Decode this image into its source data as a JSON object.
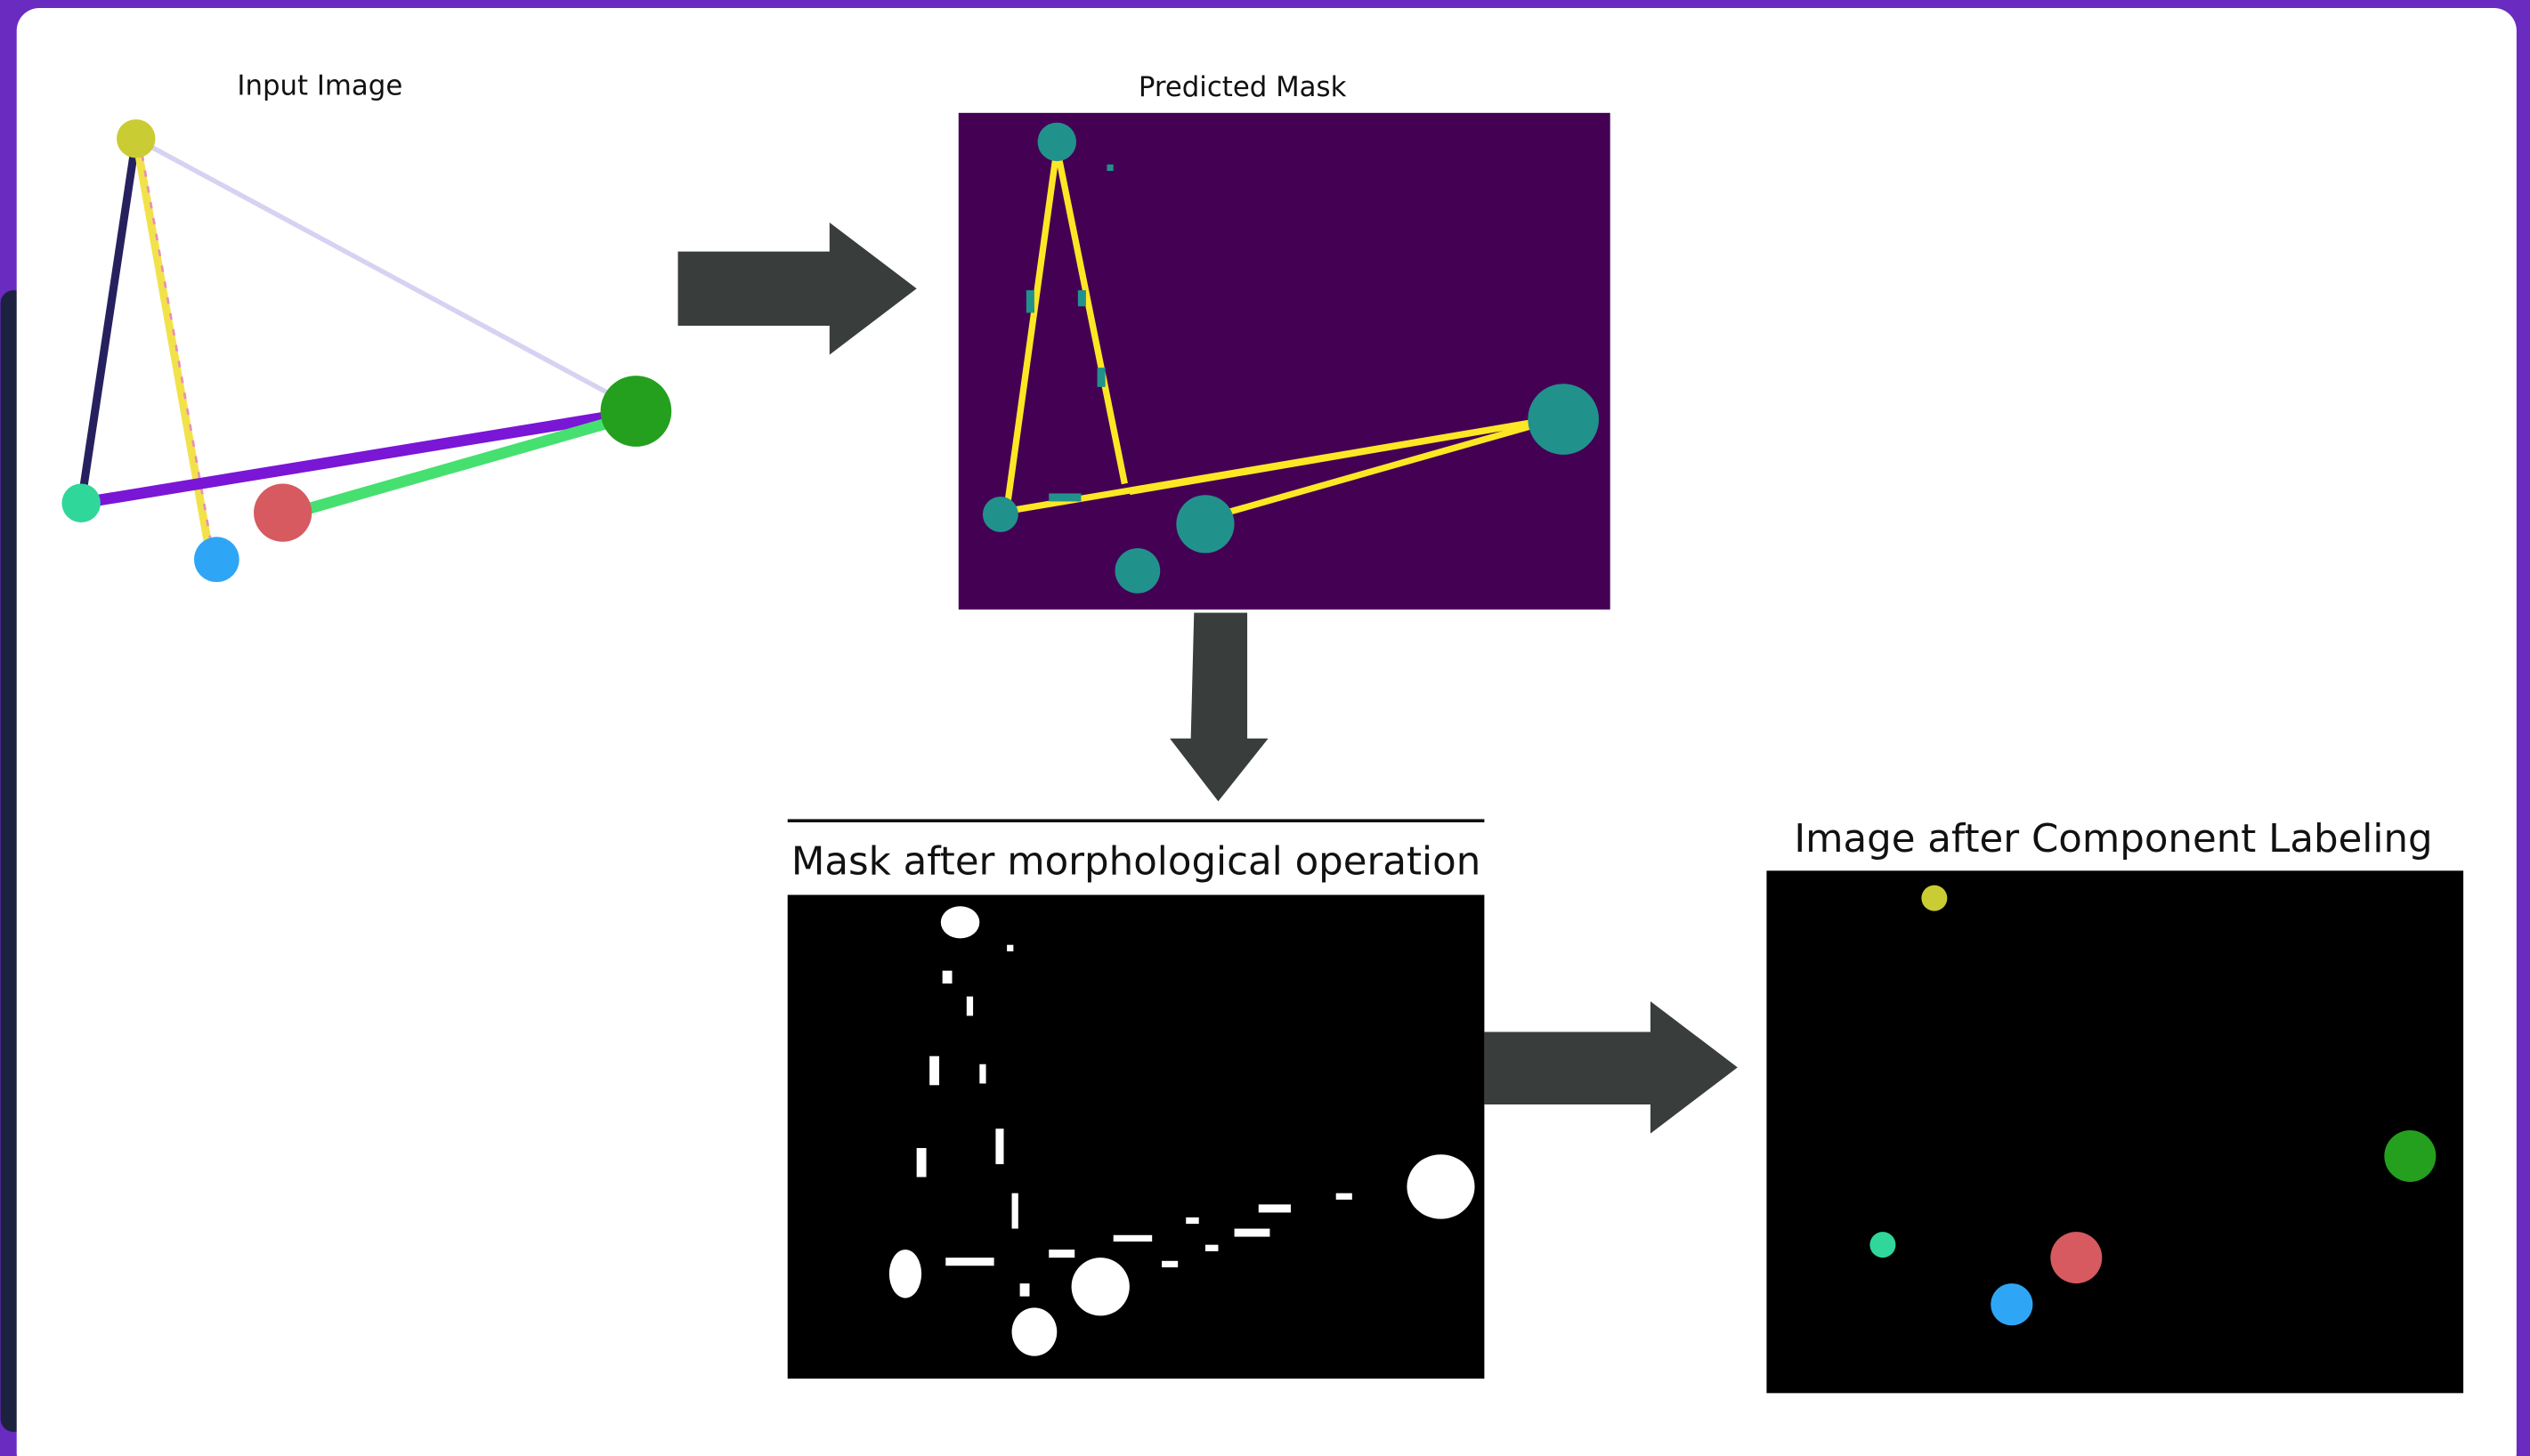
{
  "panels": [
    {
      "title": "Input Image"
    },
    {
      "title": "Predicted Mask"
    },
    {
      "title": "Mask after morphological operation"
    },
    {
      "title": "Image after Component Labeling"
    }
  ]
}
